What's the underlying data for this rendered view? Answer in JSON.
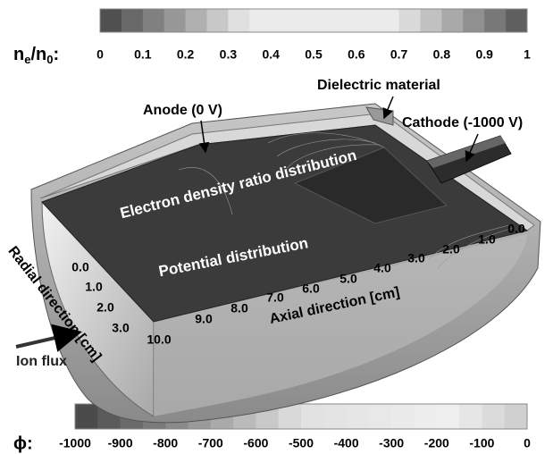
{
  "density_colorbar": {
    "label": {
      "text1": "n",
      "sub1": "e",
      "text2": "/n",
      "sub2": "0",
      "suffix": ":"
    },
    "ticks": [
      0,
      0.1,
      0.2,
      0.3,
      0.4,
      0.5,
      0.6,
      0.7,
      0.8,
      0.9,
      1
    ]
  },
  "potential_colorbar": {
    "label": "ϕ:",
    "ticks": [
      -1000,
      -900,
      -800,
      -700,
      -600,
      -500,
      -400,
      -300,
      -200,
      -100,
      0
    ]
  },
  "annotations": {
    "anode": "Anode (0 V)",
    "dielectric": "Dielectric material",
    "cathode": "Cathode (-1000 V)",
    "density": "Electron density ratio distribution",
    "potential": "Potential distribution",
    "radial_axis": "Radial direction [cm]",
    "axial_axis": "Axial direction [cm]",
    "ion_flux": "Ion flux"
  },
  "radial_ticks": [
    "0.0",
    "1.0",
    "2.0",
    "3.0"
  ],
  "axial_ticks": [
    "10.0",
    "9.0",
    "8.0",
    "7.0",
    "6.0",
    "5.0",
    "4.0",
    "3.0",
    "2.0",
    "1.0",
    "0.0"
  ]
}
